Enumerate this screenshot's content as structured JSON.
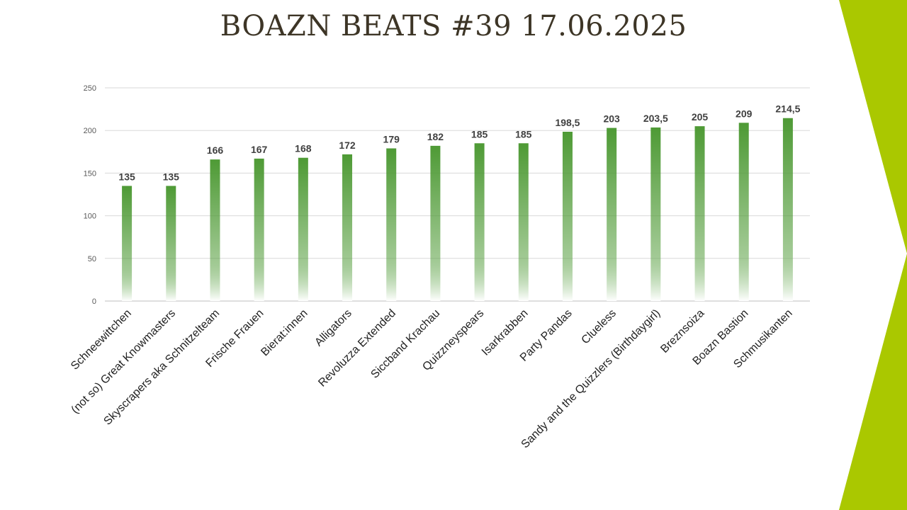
{
  "slide": {
    "title": "BOAZN BEATS #39 17.06.2025"
  },
  "colors": {
    "bar_top": "#4e9a35",
    "bar_bottom": "#ffffff",
    "accent": "#aac800",
    "grid": "#d9d9d9",
    "axis": "#bfbfbf"
  },
  "chart_data": {
    "type": "bar",
    "title": "",
    "xlabel": "",
    "ylabel": "",
    "ylim": [
      0,
      250
    ],
    "yticks": [
      0,
      50,
      100,
      150,
      200,
      250
    ],
    "grid": true,
    "categories": [
      "Schneewittchen",
      "(not so) Great Knowmasters",
      "Skyscrapers aka Schnitzelteam",
      "Frische Frauen",
      "Bierat:innen",
      "Alligators",
      "Revoluzza Extended",
      "Siccband Krachau",
      "Quizzneyspears",
      "Isarkrabben",
      "Party Pandas",
      "Clueless",
      "Sandy and the Quizzlers (Birthdaygirl)",
      "Breznsoiza",
      "Boazn Bastion",
      "Schmusikanten"
    ],
    "values": [
      135,
      135,
      166,
      167,
      168,
      172,
      179,
      182,
      185,
      185,
      198.5,
      203,
      203.5,
      205,
      209,
      214.5
    ],
    "data_labels": [
      "135",
      "135",
      "166",
      "167",
      "168",
      "172",
      "179",
      "182",
      "185",
      "185",
      "198,5",
      "203",
      "203,5",
      "205",
      "209",
      "214,5"
    ]
  }
}
